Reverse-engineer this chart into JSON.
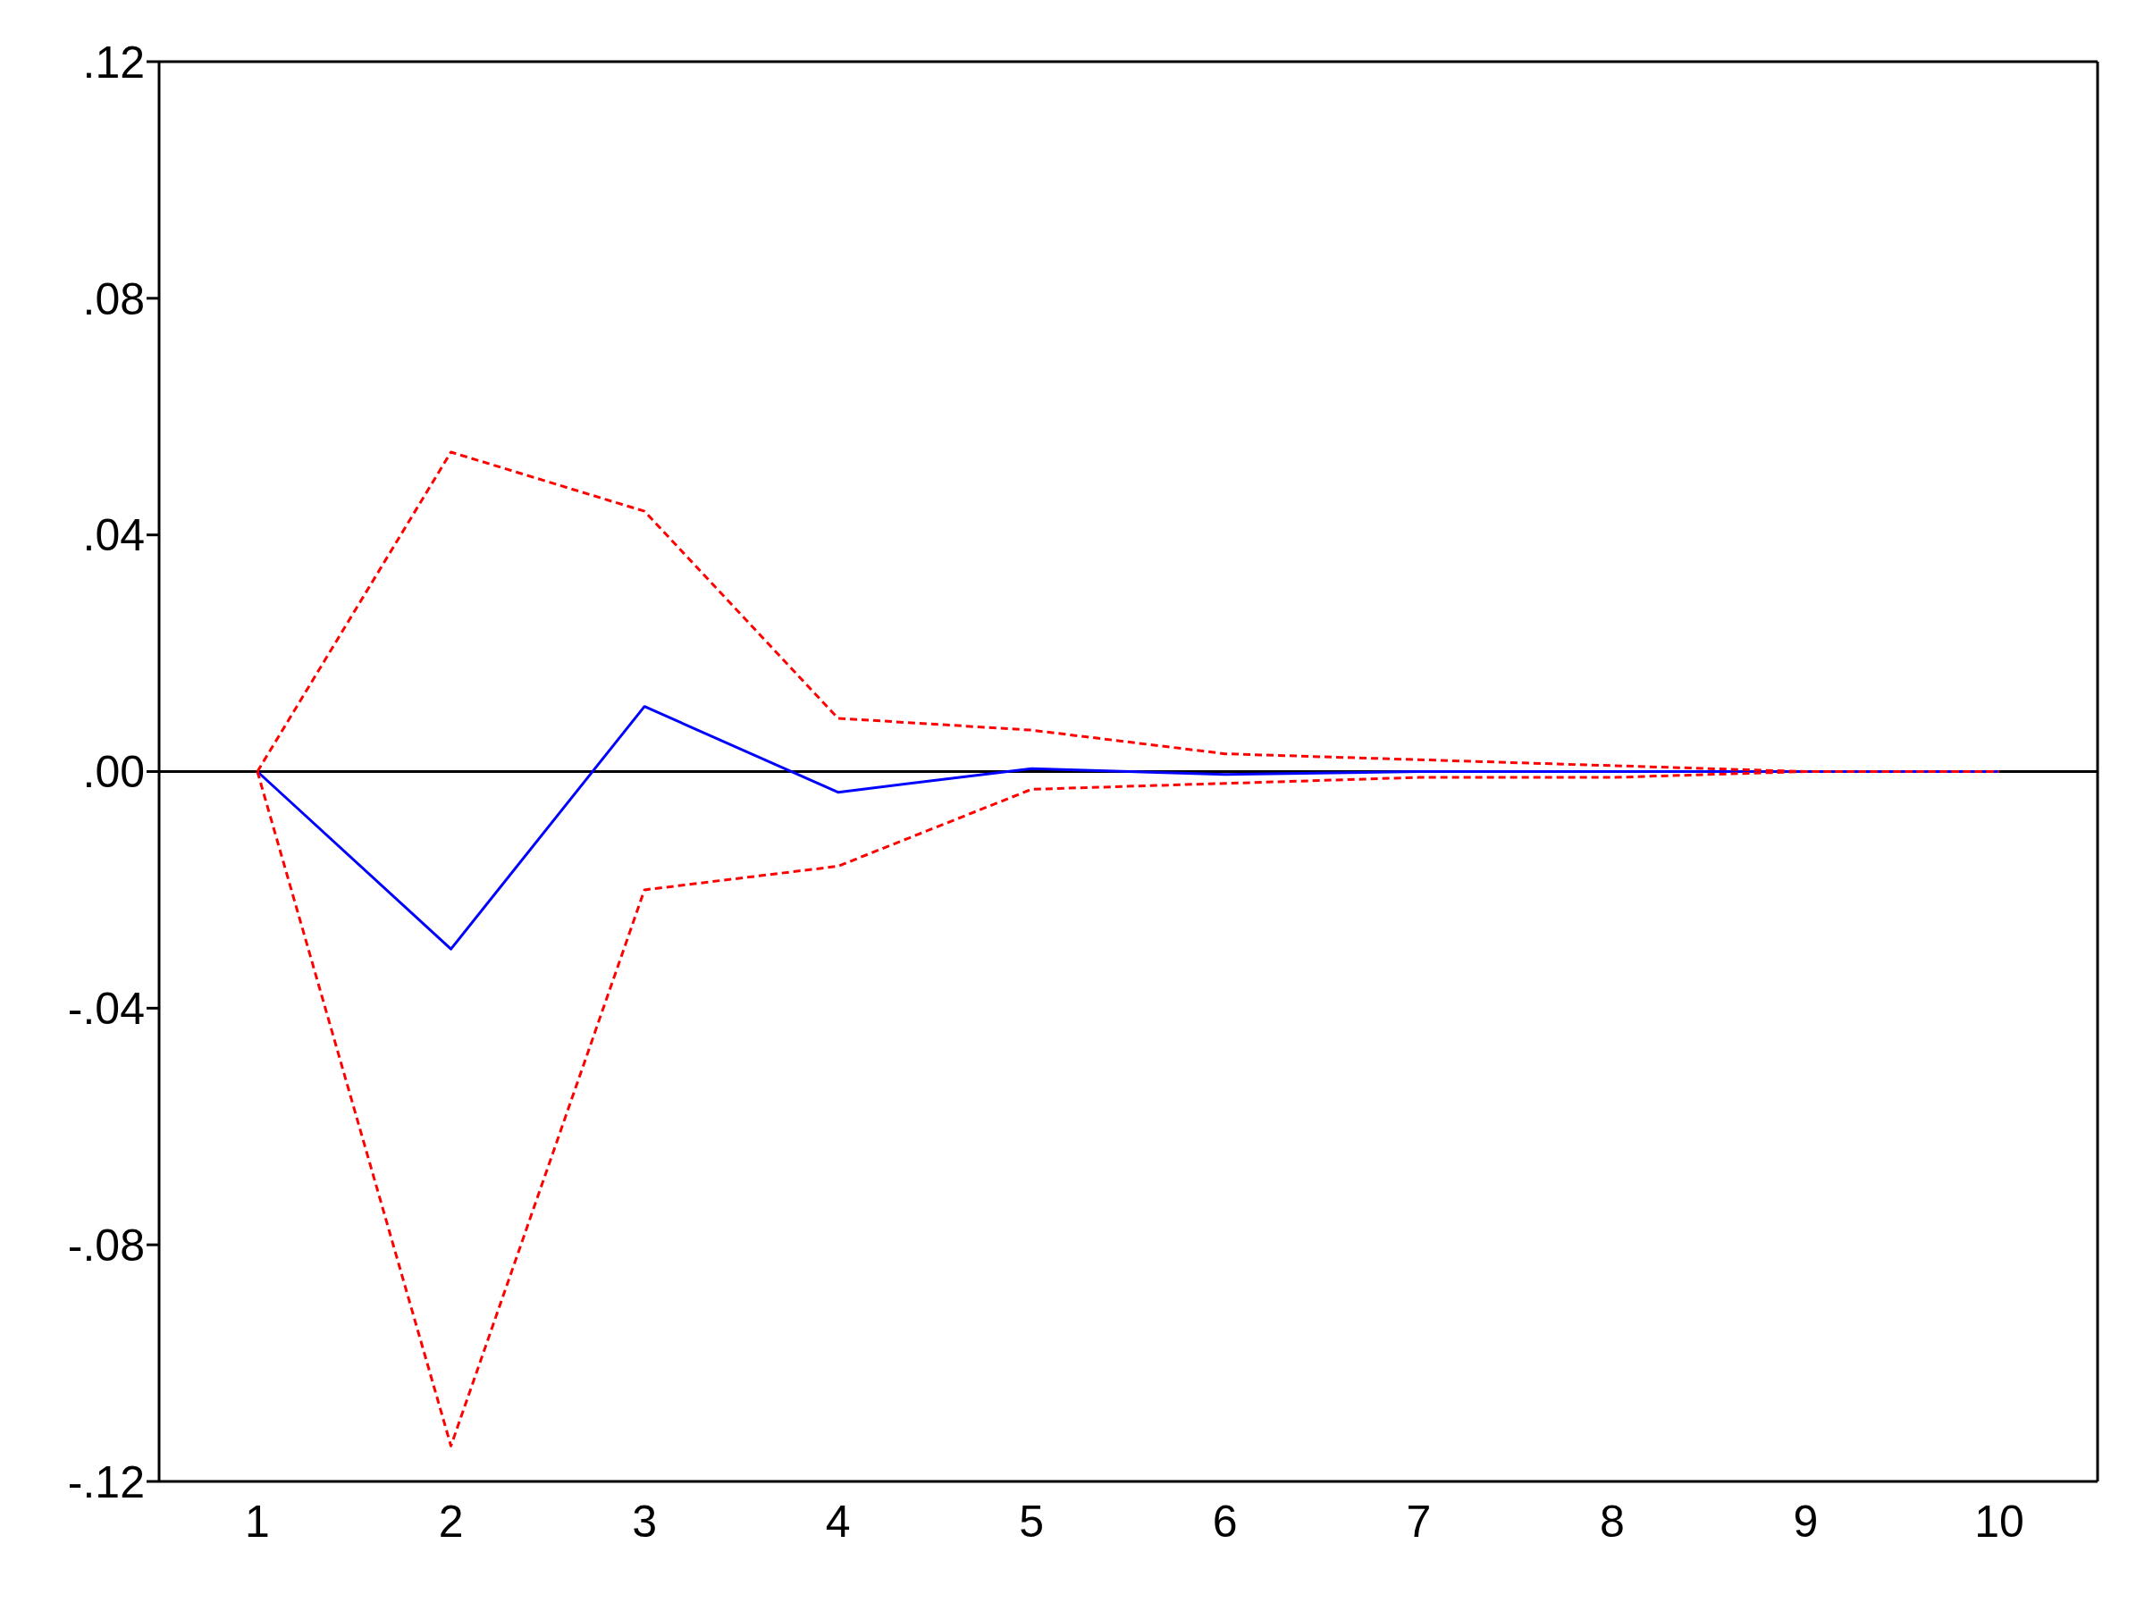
{
  "chart_data": {
    "type": "line",
    "categories": [
      "1",
      "2",
      "3",
      "4",
      "5",
      "6",
      "7",
      "8",
      "9",
      "10"
    ],
    "series": [
      {
        "color": "#0000ff",
        "line_style": "solid",
        "values": [
          0,
          -0.03,
          0.011,
          -0.0035,
          0.0005,
          -0.0005,
          0,
          0,
          0,
          0
        ]
      },
      {
        "color": "#ff0000",
        "line_style": "dashed",
        "values": [
          0,
          0.054,
          0.044,
          0.009,
          0.007,
          0.003,
          0.002,
          0.001,
          0,
          0
        ]
      },
      {
        "color": "#ff0000",
        "line_style": "dashed",
        "values": [
          0,
          -0.114,
          -0.02,
          -0.016,
          -0.003,
          -0.002,
          -0.001,
          -0.001,
          0,
          0
        ]
      }
    ],
    "ylim": [
      -0.12,
      0.12
    ],
    "yticks": [
      {
        "value": -0.12,
        "label": "-.12"
      },
      {
        "value": -0.08,
        "label": "-.08"
      },
      {
        "value": -0.04,
        "label": "-.04"
      },
      {
        "value": 0,
        "label": ".00"
      },
      {
        "value": 0.04,
        "label": ".04"
      },
      {
        "value": 0.08,
        "label": ".08"
      },
      {
        "value": 0.12,
        "label": ".12"
      }
    ],
    "ref_lines": [
      {
        "axis": "y",
        "value": 0,
        "color": "#000000"
      }
    ],
    "grid": false,
    "legend": false,
    "marker": "none"
  }
}
